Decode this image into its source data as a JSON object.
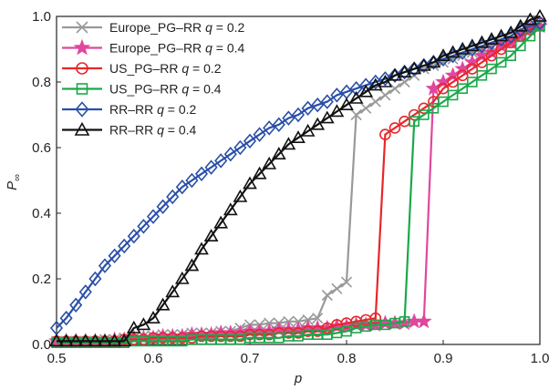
{
  "chart_data": {
    "type": "line",
    "title": "",
    "xlabel": "p",
    "ylabel": "P",
    "ylabel_subscript": "∞",
    "xlim": [
      0.5,
      1.0
    ],
    "ylim": [
      0.0,
      1.0
    ],
    "xticks": [
      "0.5",
      "0.6",
      "0.7",
      "0.8",
      "0.9",
      "1.0"
    ],
    "yticks": [
      "0.0",
      "0.2",
      "0.4",
      "0.6",
      "0.8",
      "1.0"
    ],
    "grid": false,
    "legend_position": "top-left",
    "series": [
      {
        "name": "Europe_PG–RR q = 0.2",
        "name_prefix": "Europe_PG–RR ",
        "q_value": " = 0.2",
        "color": "#999999",
        "marker": "x",
        "x": [
          0.5,
          0.51,
          0.52,
          0.53,
          0.54,
          0.55,
          0.56,
          0.57,
          0.58,
          0.59,
          0.6,
          0.61,
          0.62,
          0.63,
          0.64,
          0.65,
          0.66,
          0.67,
          0.68,
          0.69,
          0.7,
          0.71,
          0.72,
          0.73,
          0.74,
          0.75,
          0.76,
          0.77,
          0.78,
          0.79,
          0.8,
          0.81,
          0.82,
          0.83,
          0.84,
          0.85,
          0.86,
          0.87,
          0.88,
          0.89,
          0.9,
          0.91,
          0.92,
          0.93,
          0.94,
          0.95,
          0.96,
          0.97,
          0.98,
          0.99,
          1.0
        ],
        "y": [
          0.01,
          0.01,
          0.01,
          0.01,
          0.01,
          0.015,
          0.015,
          0.02,
          0.02,
          0.025,
          0.025,
          0.03,
          0.03,
          0.03,
          0.035,
          0.035,
          0.035,
          0.04,
          0.04,
          0.05,
          0.06,
          0.06,
          0.065,
          0.065,
          0.07,
          0.07,
          0.075,
          0.08,
          0.15,
          0.17,
          0.19,
          0.7,
          0.72,
          0.74,
          0.76,
          0.78,
          0.8,
          0.82,
          0.84,
          0.85,
          0.86,
          0.87,
          0.88,
          0.89,
          0.9,
          0.91,
          0.92,
          0.93,
          0.95,
          0.97,
          0.98
        ]
      },
      {
        "name": "Europe_PG–RR q = 0.4",
        "name_prefix": "Europe_PG–RR ",
        "q_value": " = 0.4",
        "color": "#e0479e",
        "marker": "star",
        "x": [
          0.5,
          0.51,
          0.52,
          0.53,
          0.54,
          0.55,
          0.56,
          0.57,
          0.58,
          0.59,
          0.6,
          0.61,
          0.62,
          0.63,
          0.64,
          0.65,
          0.66,
          0.67,
          0.68,
          0.69,
          0.7,
          0.71,
          0.72,
          0.73,
          0.74,
          0.75,
          0.76,
          0.77,
          0.78,
          0.79,
          0.8,
          0.81,
          0.82,
          0.83,
          0.84,
          0.85,
          0.86,
          0.87,
          0.88,
          0.89,
          0.9,
          0.91,
          0.92,
          0.93,
          0.94,
          0.95,
          0.96,
          0.97,
          0.98,
          0.99,
          1.0
        ],
        "y": [
          0.01,
          0.01,
          0.01,
          0.01,
          0.01,
          0.01,
          0.015,
          0.015,
          0.02,
          0.02,
          0.02,
          0.025,
          0.025,
          0.025,
          0.03,
          0.03,
          0.03,
          0.035,
          0.035,
          0.035,
          0.04,
          0.04,
          0.04,
          0.045,
          0.045,
          0.045,
          0.05,
          0.05,
          0.05,
          0.055,
          0.055,
          0.06,
          0.06,
          0.06,
          0.065,
          0.065,
          0.065,
          0.07,
          0.07,
          0.78,
          0.8,
          0.82,
          0.84,
          0.86,
          0.88,
          0.89,
          0.91,
          0.92,
          0.94,
          0.96,
          0.97
        ]
      },
      {
        "name": "US_PG–RR q = 0.2",
        "name_prefix": "US_PG–RR ",
        "q_value": " = 0.2",
        "color": "#e8262a",
        "marker": "circle",
        "x": [
          0.5,
          0.51,
          0.52,
          0.53,
          0.54,
          0.55,
          0.56,
          0.57,
          0.58,
          0.59,
          0.6,
          0.61,
          0.62,
          0.63,
          0.64,
          0.65,
          0.66,
          0.67,
          0.68,
          0.69,
          0.7,
          0.71,
          0.72,
          0.73,
          0.74,
          0.75,
          0.76,
          0.77,
          0.78,
          0.79,
          0.8,
          0.81,
          0.82,
          0.83,
          0.84,
          0.85,
          0.86,
          0.87,
          0.88,
          0.89,
          0.9,
          0.91,
          0.92,
          0.93,
          0.94,
          0.95,
          0.96,
          0.97,
          0.98,
          0.99,
          1.0
        ],
        "y": [
          0.01,
          0.01,
          0.01,
          0.01,
          0.01,
          0.01,
          0.01,
          0.015,
          0.015,
          0.015,
          0.02,
          0.02,
          0.02,
          0.02,
          0.02,
          0.025,
          0.025,
          0.025,
          0.025,
          0.025,
          0.03,
          0.03,
          0.03,
          0.035,
          0.035,
          0.035,
          0.04,
          0.04,
          0.05,
          0.06,
          0.065,
          0.07,
          0.075,
          0.08,
          0.64,
          0.66,
          0.68,
          0.7,
          0.72,
          0.74,
          0.78,
          0.8,
          0.82,
          0.84,
          0.86,
          0.88,
          0.9,
          0.92,
          0.94,
          0.96,
          0.98
        ]
      },
      {
        "name": "US_PG–RR q = 0.4",
        "name_prefix": "US_PG–RR ",
        "q_value": " = 0.4",
        "color": "#1aa84a",
        "marker": "square",
        "x": [
          0.5,
          0.51,
          0.52,
          0.53,
          0.54,
          0.55,
          0.56,
          0.57,
          0.58,
          0.59,
          0.6,
          0.61,
          0.62,
          0.63,
          0.64,
          0.65,
          0.66,
          0.67,
          0.68,
          0.69,
          0.7,
          0.71,
          0.72,
          0.73,
          0.74,
          0.75,
          0.76,
          0.77,
          0.78,
          0.79,
          0.8,
          0.81,
          0.82,
          0.83,
          0.84,
          0.85,
          0.86,
          0.87,
          0.88,
          0.89,
          0.9,
          0.91,
          0.92,
          0.93,
          0.94,
          0.95,
          0.96,
          0.97,
          0.98,
          0.99,
          1.0
        ],
        "y": [
          0.005,
          0.005,
          0.005,
          0.005,
          0.005,
          0.005,
          0.005,
          0.005,
          0.01,
          0.01,
          0.01,
          0.01,
          0.01,
          0.01,
          0.015,
          0.015,
          0.015,
          0.015,
          0.015,
          0.015,
          0.02,
          0.02,
          0.02,
          0.02,
          0.025,
          0.025,
          0.03,
          0.03,
          0.03,
          0.035,
          0.04,
          0.05,
          0.055,
          0.06,
          0.06,
          0.065,
          0.07,
          0.68,
          0.7,
          0.72,
          0.74,
          0.76,
          0.78,
          0.8,
          0.82,
          0.84,
          0.86,
          0.88,
          0.91,
          0.94,
          0.97
        ]
      },
      {
        "name": "RR–RR q = 0.2",
        "name_prefix": "RR–RR ",
        "q_value": " = 0.2",
        "color": "#2a4fa8",
        "marker": "diamond",
        "x": [
          0.5,
          0.51,
          0.52,
          0.53,
          0.54,
          0.55,
          0.56,
          0.57,
          0.58,
          0.59,
          0.6,
          0.61,
          0.62,
          0.63,
          0.64,
          0.65,
          0.66,
          0.67,
          0.68,
          0.69,
          0.7,
          0.71,
          0.72,
          0.73,
          0.74,
          0.75,
          0.76,
          0.77,
          0.78,
          0.79,
          0.8,
          0.81,
          0.82,
          0.83,
          0.84,
          0.85,
          0.86,
          0.87,
          0.88,
          0.89,
          0.9,
          0.91,
          0.92,
          0.93,
          0.94,
          0.95,
          0.96,
          0.97,
          0.98,
          0.99,
          1.0
        ],
        "y": [
          0.05,
          0.08,
          0.12,
          0.16,
          0.2,
          0.24,
          0.27,
          0.3,
          0.33,
          0.36,
          0.39,
          0.42,
          0.45,
          0.48,
          0.5,
          0.52,
          0.54,
          0.56,
          0.58,
          0.6,
          0.62,
          0.64,
          0.66,
          0.67,
          0.69,
          0.7,
          0.72,
          0.73,
          0.74,
          0.76,
          0.77,
          0.78,
          0.79,
          0.8,
          0.81,
          0.82,
          0.83,
          0.84,
          0.85,
          0.86,
          0.87,
          0.88,
          0.89,
          0.9,
          0.91,
          0.92,
          0.93,
          0.94,
          0.96,
          0.97,
          0.98
        ]
      },
      {
        "name": "RR–RR q = 0.4",
        "name_prefix": "RR–RR ",
        "q_value": " = 0.4",
        "color": "#111111",
        "marker": "triangle",
        "x": [
          0.5,
          0.51,
          0.52,
          0.53,
          0.54,
          0.55,
          0.56,
          0.57,
          0.58,
          0.59,
          0.6,
          0.61,
          0.62,
          0.63,
          0.64,
          0.65,
          0.66,
          0.67,
          0.68,
          0.69,
          0.7,
          0.71,
          0.72,
          0.73,
          0.74,
          0.75,
          0.76,
          0.77,
          0.78,
          0.79,
          0.8,
          0.81,
          0.82,
          0.83,
          0.84,
          0.85,
          0.86,
          0.87,
          0.88,
          0.89,
          0.9,
          0.91,
          0.92,
          0.93,
          0.94,
          0.95,
          0.96,
          0.97,
          0.98,
          0.99,
          1.0
        ],
        "y": [
          0.01,
          0.01,
          0.01,
          0.01,
          0.01,
          0.01,
          0.01,
          0.01,
          0.05,
          0.06,
          0.08,
          0.12,
          0.16,
          0.2,
          0.24,
          0.29,
          0.33,
          0.37,
          0.41,
          0.45,
          0.49,
          0.52,
          0.55,
          0.58,
          0.61,
          0.63,
          0.65,
          0.67,
          0.69,
          0.71,
          0.73,
          0.75,
          0.77,
          0.79,
          0.8,
          0.82,
          0.83,
          0.84,
          0.85,
          0.86,
          0.88,
          0.89,
          0.9,
          0.91,
          0.92,
          0.93,
          0.94,
          0.95,
          0.97,
          0.99,
          1.0
        ]
      }
    ]
  }
}
